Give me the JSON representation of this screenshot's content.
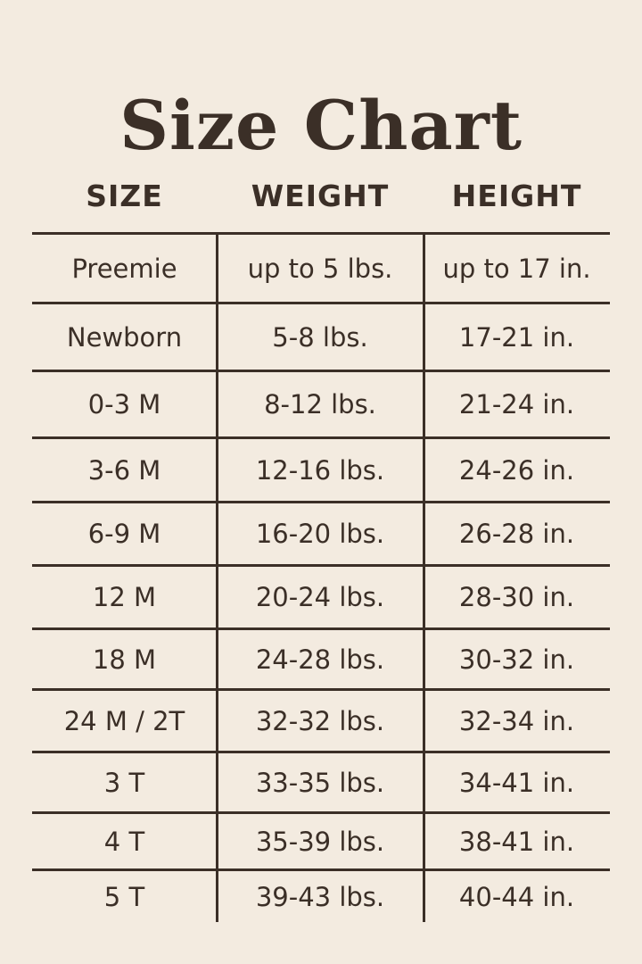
{
  "title": "Size Chart",
  "headers": [
    "SIZE",
    "WEIGHT",
    "HEIGHT"
  ],
  "rows": [
    [
      "Preemie",
      "up to 5 lbs.",
      "up to 17 in."
    ],
    [
      "Newborn",
      "5-8 lbs.",
      "17-21 in."
    ],
    [
      "0-3 M",
      "8-12 lbs.",
      "21-24 in."
    ],
    [
      "3-6 M",
      "12-16 lbs.",
      "24-26 in."
    ],
    [
      "6-9 M",
      "16-20 lbs.",
      "26-28 in."
    ],
    [
      "12 M",
      "20-24 lbs.",
      "28-30 in."
    ],
    [
      "18 M",
      "24-28 lbs.",
      "30-32 in."
    ],
    [
      "24 M / 2T",
      "32-32 lbs.",
      "32-34 in."
    ],
    [
      "3 T",
      "33-35 lbs.",
      "34-41 in."
    ],
    [
      "4 T",
      "35-39 lbs.",
      "38-41 in."
    ],
    [
      "5 T",
      "39-43 lbs.",
      "40-44 in."
    ]
  ],
  "colors": {
    "background": "#f3ebe0",
    "text": "#3b2f27"
  }
}
